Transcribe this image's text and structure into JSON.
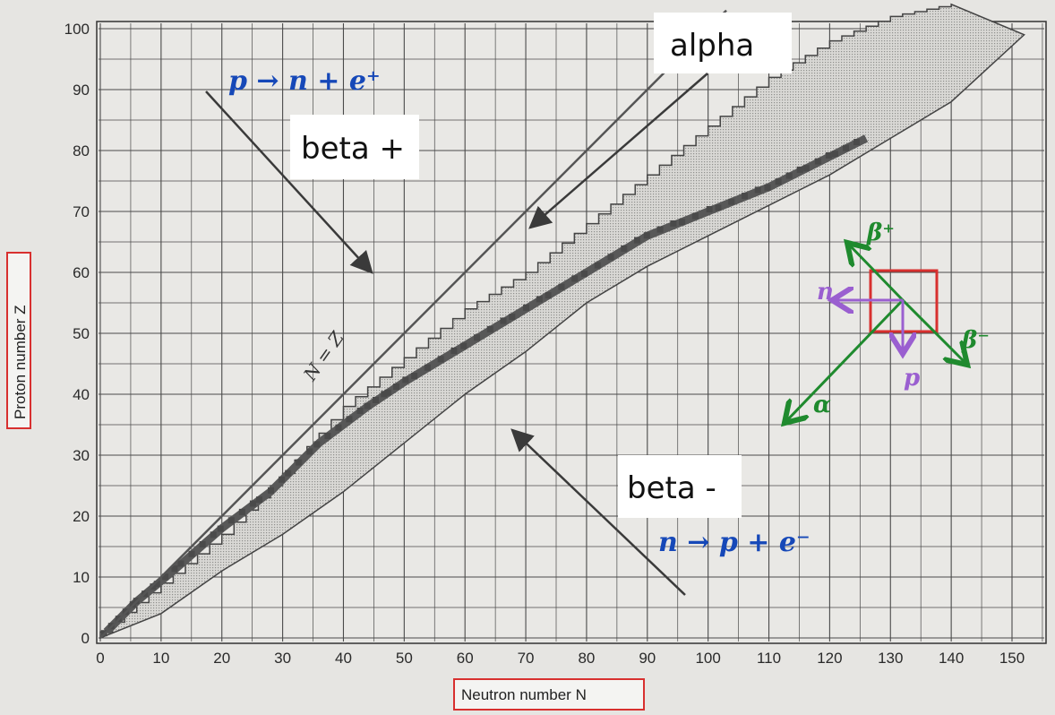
{
  "chart_data": {
    "type": "scatter",
    "xlabel": "Neutron number N",
    "ylabel": "Proton number Z",
    "xlim": [
      0,
      160
    ],
    "ylim": [
      0,
      104
    ],
    "x_ticks": [
      "0",
      "10",
      "20",
      "30",
      "40",
      "50",
      "60",
      "70",
      "80",
      "90",
      "100",
      "110",
      "120",
      "130",
      "140",
      "150"
    ],
    "y_ticks": [
      "0",
      "10",
      "20",
      "30",
      "40",
      "50",
      "60",
      "70",
      "80",
      "90",
      "100"
    ],
    "grid": true,
    "reference_line_label": "N = Z",
    "known_nuclide_band": {
      "upper_edge": [
        [
          0,
          1
        ],
        [
          10,
          9
        ],
        [
          20,
          17
        ],
        [
          30,
          27
        ],
        [
          40,
          38
        ],
        [
          50,
          46
        ],
        [
          60,
          54
        ],
        [
          70,
          60
        ],
        [
          80,
          68
        ],
        [
          90,
          76
        ],
        [
          100,
          84
        ],
        [
          110,
          92
        ],
        [
          120,
          98
        ],
        [
          130,
          102
        ],
        [
          140,
          104
        ]
      ],
      "lower_edge": [
        [
          0,
          0
        ],
        [
          10,
          4
        ],
        [
          20,
          11
        ],
        [
          30,
          17
        ],
        [
          40,
          24
        ],
        [
          50,
          32
        ],
        [
          60,
          40
        ],
        [
          70,
          47
        ],
        [
          80,
          55
        ],
        [
          90,
          61
        ],
        [
          100,
          66
        ],
        [
          110,
          71
        ],
        [
          120,
          76
        ],
        [
          130,
          82
        ],
        [
          140,
          88
        ],
        [
          152,
          99
        ]
      ]
    },
    "stable_valley": [
      [
        1,
        1
      ],
      [
        6,
        6
      ],
      [
        12,
        11
      ],
      [
        20,
        18
      ],
      [
        28,
        24
      ],
      [
        36,
        32
      ],
      [
        44,
        38
      ],
      [
        50,
        42
      ],
      [
        60,
        48
      ],
      [
        70,
        54
      ],
      [
        80,
        60
      ],
      [
        90,
        66
      ],
      [
        100,
        70
      ],
      [
        110,
        74
      ],
      [
        118,
        78
      ],
      [
        126,
        82
      ]
    ],
    "annotations": [
      {
        "text": "alpha",
        "arrow_to": [
          56,
          67
        ]
      },
      {
        "text": "beta +",
        "arrow_to": [
          45,
          59
        ]
      },
      {
        "text": "beta -",
        "arrow_to": [
          70,
          35
        ]
      }
    ],
    "handwritten": {
      "beta_plus_eq": "p → n + e⁺",
      "beta_minus_eq": "n → p + e⁻",
      "diagram_labels": [
        "β⁺",
        "β⁻",
        "n",
        "p",
        "α"
      ]
    },
    "colors": {
      "band_fill": "#cfcfcd",
      "stable": "#555555",
      "grid": "#4a4a4a",
      "handwriting": "#1648b8",
      "diagram_green": "#1f8a2e",
      "diagram_purple": "#9a5fd0",
      "highlight_red": "#d8302f"
    }
  }
}
